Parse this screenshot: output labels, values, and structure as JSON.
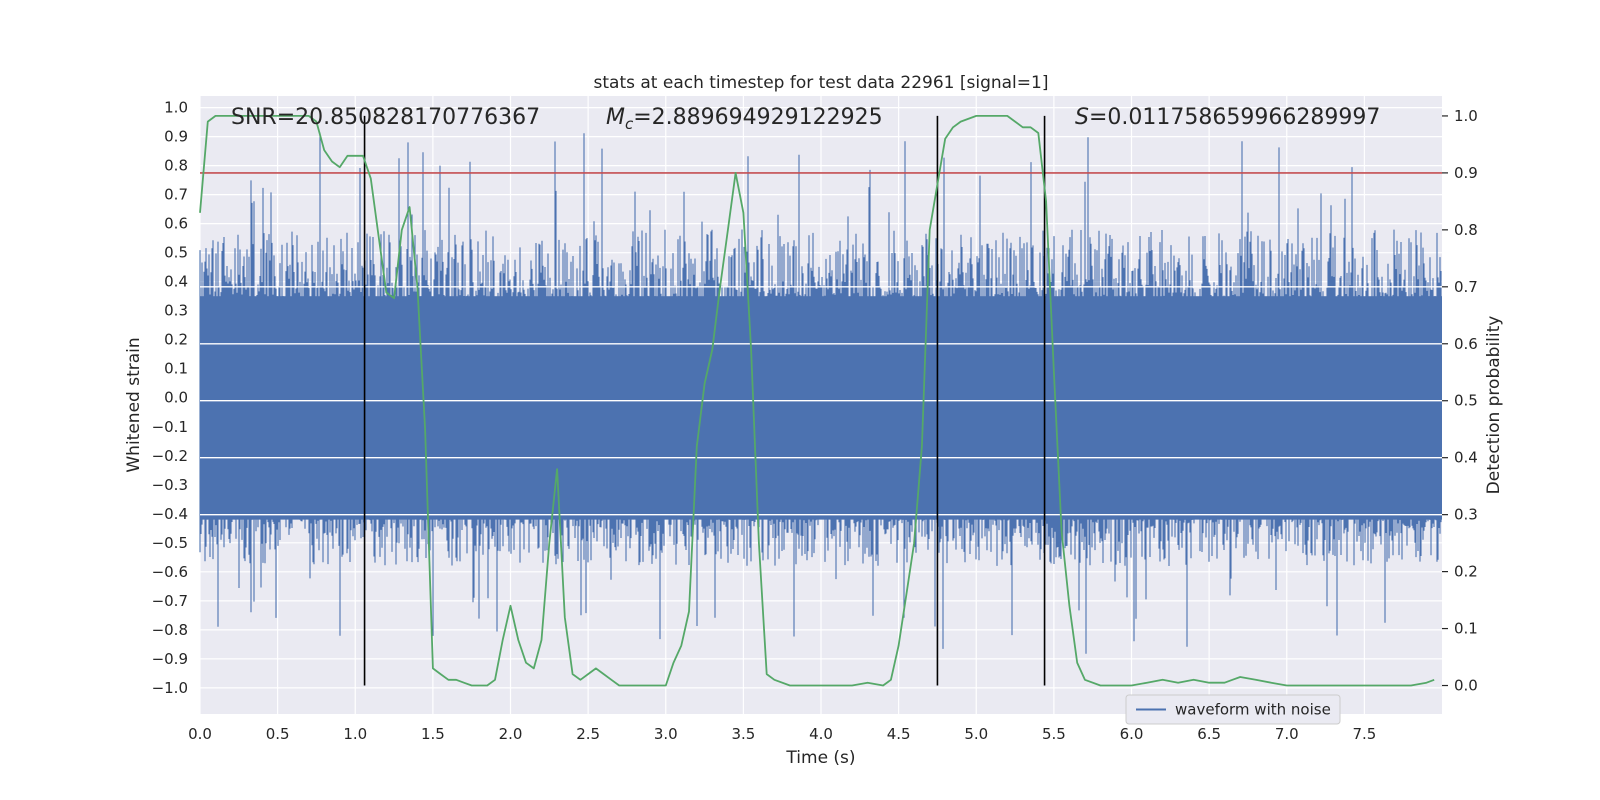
{
  "chart_data": {
    "type": "line",
    "title": "stats at each timestep for test data 22961 [signal=1]",
    "xlabel": "Time (s)",
    "ylabel_left": "Whitened strain",
    "ylabel_right": "Detection probability",
    "xlim": [
      0.0,
      8.0
    ],
    "ylim_left": [
      -1.09,
      1.04
    ],
    "ylim_right": [
      -0.05,
      1.035
    ],
    "x_ticks": [
      "0.0",
      "0.5",
      "1.0",
      "1.5",
      "2.0",
      "2.5",
      "3.0",
      "3.5",
      "4.0",
      "4.5",
      "5.0",
      "5.5",
      "6.0",
      "6.5",
      "7.0",
      "7.5"
    ],
    "y_ticks_left": [
      "1.0",
      "0.9",
      "0.8",
      "0.7",
      "0.6",
      "0.5",
      "0.4",
      "0.3",
      "0.2",
      "0.1",
      "0.0",
      "-0.1",
      "-0.2",
      "-0.3",
      "-0.4",
      "-0.5",
      "-0.6",
      "-0.7",
      "-0.8",
      "-0.9",
      "-1.0"
    ],
    "y_ticks_right": [
      "1.0",
      "0.9",
      "0.8",
      "0.7",
      "0.6",
      "0.5",
      "0.4",
      "0.3",
      "0.2",
      "0.1",
      "0.0"
    ],
    "annotations": {
      "snr": "SNR=20.850828170776367",
      "mc_symbol": "M",
      "mc_sub": "c",
      "mc_value": "=2.889694929122925",
      "s_symbol": "S",
      "s_value": "=0.011758659966289997"
    },
    "legend": {
      "entry": "waveform with noise",
      "location": "lower-right"
    },
    "threshold": {
      "value": 0.9,
      "axis": "right",
      "color": "#c44e52"
    },
    "vlines": [
      1.06,
      4.75,
      5.44
    ],
    "vline_range_right": [
      0.0,
      1.0
    ],
    "series": [
      {
        "name": "waveform with noise",
        "axis": "left",
        "color": "#4c72b0",
        "kind": "noise",
        "core_range": [
          -0.42,
          0.35
        ],
        "typical_extreme": [
          -0.58,
          0.58
        ],
        "peak_extreme": [
          -1.0,
          0.94
        ]
      },
      {
        "name": "Detection probability",
        "axis": "right",
        "color": "#55a868",
        "x": [
          0.0,
          0.05,
          0.1,
          0.15,
          0.2,
          0.3,
          0.4,
          0.5,
          0.6,
          0.7,
          0.75,
          0.8,
          0.85,
          0.9,
          0.95,
          1.0,
          1.05,
          1.1,
          1.15,
          1.2,
          1.25,
          1.3,
          1.35,
          1.4,
          1.45,
          1.5,
          1.55,
          1.6,
          1.65,
          1.7,
          1.75,
          1.8,
          1.85,
          1.9,
          1.95,
          2.0,
          2.05,
          2.1,
          2.15,
          2.2,
          2.25,
          2.3,
          2.35,
          2.4,
          2.45,
          2.5,
          2.55,
          2.6,
          2.65,
          2.7,
          2.75,
          2.8,
          2.9,
          3.0,
          3.05,
          3.1,
          3.15,
          3.2,
          3.25,
          3.3,
          3.35,
          3.4,
          3.45,
          3.5,
          3.55,
          3.6,
          3.65,
          3.7,
          3.8,
          3.9,
          4.0,
          4.1,
          4.2,
          4.3,
          4.4,
          4.45,
          4.5,
          4.55,
          4.6,
          4.65,
          4.7,
          4.75,
          4.8,
          4.85,
          4.9,
          5.0,
          5.1,
          5.2,
          5.25,
          5.3,
          5.35,
          5.4,
          5.45,
          5.5,
          5.55,
          5.6,
          5.65,
          5.7,
          5.8,
          5.9,
          6.0,
          6.1,
          6.2,
          6.3,
          6.4,
          6.5,
          6.6,
          6.65,
          6.7,
          6.8,
          6.9,
          7.0,
          7.1,
          7.2,
          7.3,
          7.4,
          7.5,
          7.6,
          7.7,
          7.8,
          7.9,
          7.95
        ],
        "y": [
          0.83,
          0.99,
          1.0,
          1.0,
          1.0,
          1.0,
          1.0,
          1.0,
          1.0,
          1.0,
          0.99,
          0.94,
          0.92,
          0.91,
          0.93,
          0.93,
          0.93,
          0.89,
          0.79,
          0.69,
          0.68,
          0.8,
          0.84,
          0.7,
          0.45,
          0.03,
          0.02,
          0.01,
          0.01,
          0.005,
          0.0,
          0.0,
          0.0,
          0.01,
          0.08,
          0.14,
          0.08,
          0.04,
          0.03,
          0.08,
          0.25,
          0.38,
          0.12,
          0.02,
          0.01,
          0.02,
          0.03,
          0.02,
          0.01,
          0.0,
          0.0,
          0.0,
          0.0,
          0.0,
          0.04,
          0.07,
          0.13,
          0.42,
          0.53,
          0.59,
          0.7,
          0.8,
          0.9,
          0.83,
          0.59,
          0.25,
          0.02,
          0.01,
          0.0,
          0.0,
          0.0,
          0.0,
          0.0,
          0.005,
          0.0,
          0.01,
          0.07,
          0.16,
          0.25,
          0.42,
          0.8,
          0.88,
          0.96,
          0.98,
          0.99,
          1.0,
          1.0,
          1.0,
          0.99,
          0.98,
          0.98,
          0.97,
          0.85,
          0.55,
          0.27,
          0.14,
          0.04,
          0.01,
          0.0,
          0.0,
          0.0,
          0.005,
          0.01,
          0.005,
          0.01,
          0.005,
          0.005,
          0.01,
          0.015,
          0.01,
          0.005,
          0.0,
          0.0,
          0.0,
          0.0,
          0.0,
          0.0,
          0.0,
          0.0,
          0.0,
          0.005,
          0.01
        ]
      }
    ]
  }
}
